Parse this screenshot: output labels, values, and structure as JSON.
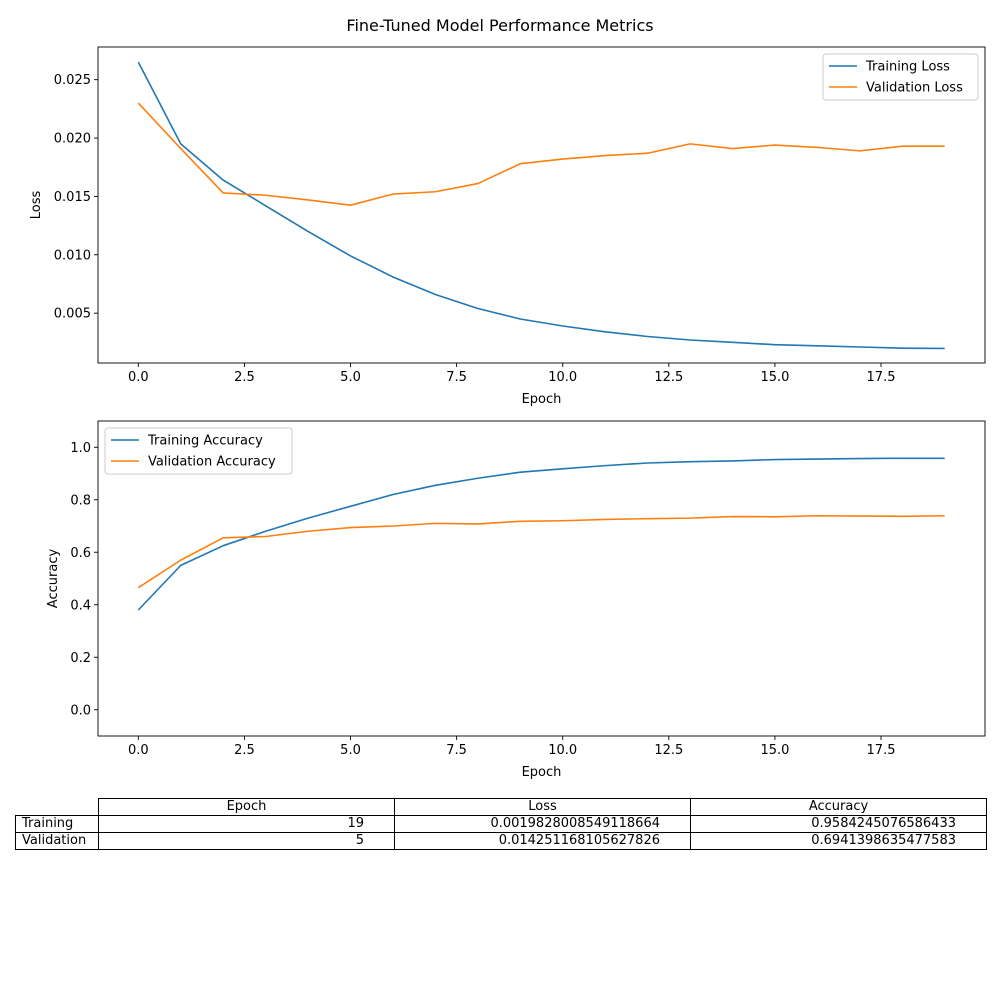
{
  "title": "Fine-Tuned Model Performance Metrics",
  "chart_data": [
    {
      "type": "line",
      "xlabel": "Epoch",
      "ylabel": "Loss",
      "xlim": [
        -0.95,
        19.95
      ],
      "ylim": [
        0.00073,
        0.0278
      ],
      "xticks": [
        0.0,
        2.5,
        5.0,
        7.5,
        10.0,
        12.5,
        15.0,
        17.5
      ],
      "xtick_labels": [
        "0.0",
        "2.5",
        "5.0",
        "7.5",
        "10.0",
        "12.5",
        "15.0",
        "17.5"
      ],
      "yticks": [
        0.005,
        0.01,
        0.015,
        0.02,
        0.025
      ],
      "ytick_labels": [
        "0.005",
        "0.010",
        "0.015",
        "0.020",
        "0.025"
      ],
      "grid": false,
      "legend_position": "upper right",
      "x": [
        0,
        1,
        2,
        3,
        4,
        5,
        6,
        7,
        8,
        9,
        10,
        11,
        12,
        13,
        14,
        15,
        16,
        17,
        18,
        19
      ],
      "series": [
        {
          "name": "Training Loss",
          "color": "#1f77b4",
          "values": [
            0.0265,
            0.0195,
            0.0164,
            0.0142,
            0.012,
            0.0099,
            0.0081,
            0.0066,
            0.0054,
            0.0045,
            0.0039,
            0.0034,
            0.003,
            0.0027,
            0.0025,
            0.0023,
            0.0022,
            0.0021,
            0.002,
            0.00198
          ]
        },
        {
          "name": "Validation Loss",
          "color": "#ff7f0e",
          "values": [
            0.023,
            0.0191,
            0.0153,
            0.0151,
            0.0147,
            0.01425,
            0.0152,
            0.0154,
            0.0161,
            0.0178,
            0.0182,
            0.0185,
            0.0187,
            0.0195,
            0.0191,
            0.0194,
            0.0192,
            0.0189,
            0.0193,
            0.0193
          ]
        }
      ]
    },
    {
      "type": "line",
      "xlabel": "Epoch",
      "ylabel": "Accuracy",
      "xlim": [
        -0.95,
        19.95
      ],
      "ylim": [
        -0.1,
        1.1
      ],
      "xticks": [
        0.0,
        2.5,
        5.0,
        7.5,
        10.0,
        12.5,
        15.0,
        17.5
      ],
      "xtick_labels": [
        "0.0",
        "2.5",
        "5.0",
        "7.5",
        "10.0",
        "12.5",
        "15.0",
        "17.5"
      ],
      "yticks": [
        0.0,
        0.2,
        0.4,
        0.6,
        0.8,
        1.0
      ],
      "ytick_labels": [
        "0.0",
        "0.2",
        "0.4",
        "0.6",
        "0.8",
        "1.0"
      ],
      "grid": false,
      "legend_position": "upper left",
      "x": [
        0,
        1,
        2,
        3,
        4,
        5,
        6,
        7,
        8,
        9,
        10,
        11,
        12,
        13,
        14,
        15,
        16,
        17,
        18,
        19
      ],
      "series": [
        {
          "name": "Training Accuracy",
          "color": "#1f77b4",
          "values": [
            0.38,
            0.55,
            0.625,
            0.68,
            0.73,
            0.775,
            0.82,
            0.855,
            0.882,
            0.905,
            0.918,
            0.93,
            0.94,
            0.945,
            0.948,
            0.953,
            0.955,
            0.957,
            0.958,
            0.958
          ]
        },
        {
          "name": "Validation Accuracy",
          "color": "#ff7f0e",
          "values": [
            0.465,
            0.57,
            0.655,
            0.66,
            0.68,
            0.694,
            0.7,
            0.71,
            0.708,
            0.718,
            0.72,
            0.725,
            0.728,
            0.73,
            0.736,
            0.735,
            0.739,
            0.738,
            0.737,
            0.739
          ]
        }
      ]
    }
  ],
  "table": {
    "columns": [
      "Epoch",
      "Loss",
      "Accuracy"
    ],
    "rows": [
      {
        "label": "Training",
        "cells": [
          "19",
          "0.0019828008549118664",
          "0.9584245076586433"
        ]
      },
      {
        "label": "Validation",
        "cells": [
          "5",
          "0.014251168105627826",
          "0.6941398635477583"
        ]
      }
    ]
  }
}
